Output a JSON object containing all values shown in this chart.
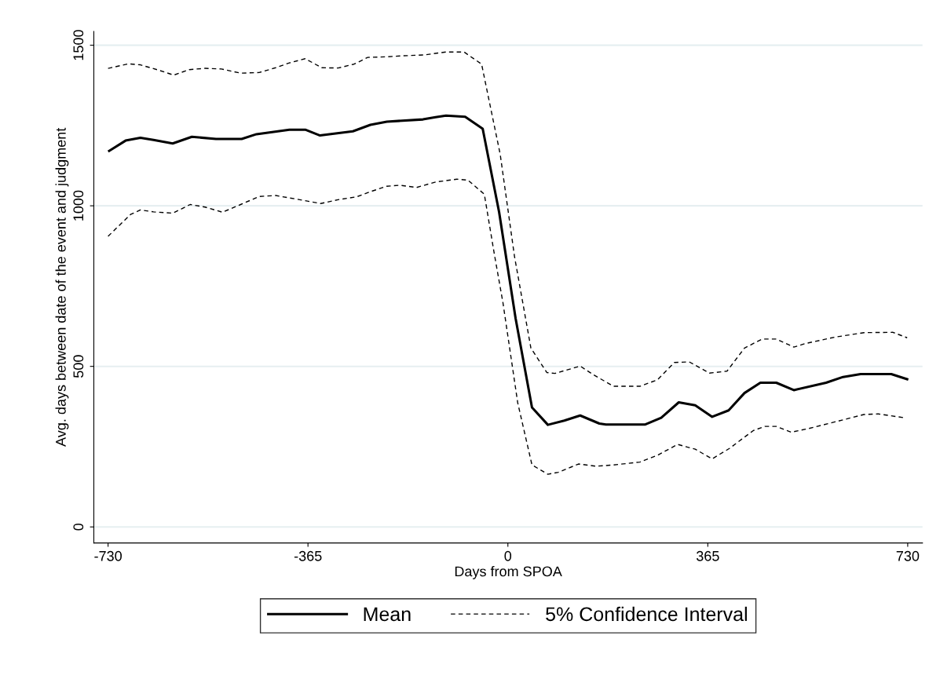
{
  "chart_data": {
    "type": "line",
    "xlabel": "Days from SPOA",
    "ylabel": "Avg. days between date of the event and judgment",
    "xlim": [
      -756,
      757
    ],
    "xticks": [
      -730,
      -365,
      0,
      365,
      730
    ],
    "ylim": [
      -50,
      1543
    ],
    "yticks": [
      0,
      500,
      1000,
      1500
    ],
    "grid": "y",
    "legend": "bottom",
    "series": [
      {
        "name": "Mean",
        "color": "#000000",
        "line_style": "solid",
        "x": [
          -728,
          -698,
          -671,
          -647,
          -612,
          -577,
          -533,
          -486,
          -459,
          -399,
          -370,
          -343,
          -283,
          -251,
          -221,
          -155,
          -132,
          -113,
          -78,
          -46,
          -16,
          14,
          44,
          73,
          103,
          132,
          167,
          179,
          251,
          280,
          312,
          342,
          373,
          403,
          432,
          461,
          490,
          522,
          581,
          612,
          644,
          700,
          729
        ],
        "values": [
          1171,
          1203,
          1212,
          1205,
          1194,
          1215,
          1208,
          1208,
          1223,
          1237,
          1237,
          1219,
          1232,
          1252,
          1262,
          1269,
          1276,
          1281,
          1277,
          1240,
          980,
          650,
          372,
          318,
          331,
          347,
          322,
          319,
          319,
          340,
          388,
          379,
          343,
          363,
          417,
          449,
          449,
          426,
          449,
          467,
          476,
          476,
          460
        ]
      },
      {
        "name": "5% Confidence Interval",
        "color": "#000000",
        "line_style": "dashed",
        "x": [
          -730,
          -693,
          -671,
          -637,
          -610,
          -582,
          -553,
          -523,
          -488,
          -454,
          -424,
          -399,
          -370,
          -340,
          -310,
          -281,
          -256,
          -221,
          -192,
          -152,
          -113,
          -80,
          -48,
          -14,
          12,
          42,
          71,
          86,
          132,
          156,
          193,
          241,
          273,
          304,
          331,
          368,
          400,
          432,
          464,
          490,
          522,
          543,
          597,
          650,
          703,
          729
        ],
        "values": [
          1428,
          1442,
          1439,
          1422,
          1407,
          1424,
          1428,
          1426,
          1413,
          1415,
          1430,
          1445,
          1458,
          1430,
          1429,
          1441,
          1462,
          1464,
          1467,
          1470,
          1479,
          1479,
          1441,
          1160,
          843,
          557,
          481,
          478,
          501,
          474,
          438,
          438,
          458,
          512,
          514,
          479,
          485,
          557,
          585,
          585,
          560,
          571,
          591,
          605,
          606,
          589
        ]
      },
      {
        "color": "#000000",
        "line_style": "dashed",
        "x": [
          -730,
          -689,
          -671,
          -647,
          -612,
          -580,
          -553,
          -521,
          -488,
          -454,
          -424,
          -380,
          -342,
          -310,
          -276,
          -251,
          -221,
          -197,
          -167,
          -132,
          -93,
          -73,
          -43,
          -25,
          -9,
          18,
          44,
          73,
          92,
          129,
          161,
          193,
          241,
          273,
          310,
          342,
          373,
          405,
          448,
          469,
          490,
          517,
          548,
          597,
          650,
          676,
          724
        ],
        "values": [
          905,
          973,
          987,
          981,
          977,
          1004,
          996,
          980,
          1004,
          1029,
          1032,
          1019,
          1007,
          1019,
          1028,
          1044,
          1061,
          1064,
          1057,
          1074,
          1083,
          1080,
          1036,
          852,
          698,
          386,
          193,
          164,
          170,
          196,
          189,
          193,
          202,
          223,
          257,
          242,
          212,
          245,
          300,
          313,
          313,
          295,
          306,
          327,
          350,
          352,
          340
        ]
      }
    ]
  }
}
